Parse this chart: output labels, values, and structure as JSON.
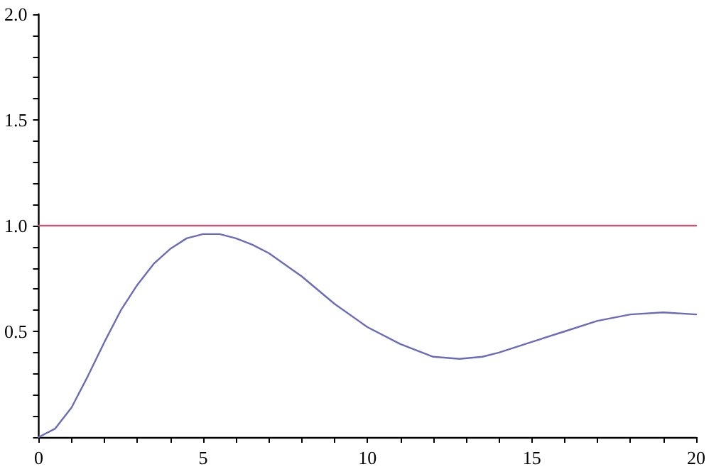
{
  "chart_data": {
    "type": "line",
    "xlim": [
      0,
      20
    ],
    "ylim": [
      0,
      2
    ],
    "xticks": [
      0,
      {
        "value": 1,
        "label": null
      },
      {
        "value": 2,
        "label": null
      },
      {
        "value": 3,
        "label": null
      },
      {
        "value": 4,
        "label": null
      },
      5,
      {
        "value": 6,
        "label": null
      },
      {
        "value": 7,
        "label": null
      },
      {
        "value": 8,
        "label": null
      },
      {
        "value": 9,
        "label": null
      },
      10,
      {
        "value": 11,
        "label": null
      },
      {
        "value": 12,
        "label": null
      },
      {
        "value": 13,
        "label": null
      },
      {
        "value": 14,
        "label": null
      },
      15,
      {
        "value": 16,
        "label": null
      },
      {
        "value": 17,
        "label": null
      },
      {
        "value": 18,
        "label": null
      },
      {
        "value": 19,
        "label": null
      },
      20
    ],
    "yticks": [
      {
        "value": 0,
        "label": null
      },
      {
        "value": 0.1,
        "label": null
      },
      {
        "value": 0.2,
        "label": null
      },
      {
        "value": 0.3,
        "label": null
      },
      {
        "value": 0.4,
        "label": null
      },
      0.5,
      {
        "value": 0.6,
        "label": null
      },
      {
        "value": 0.7,
        "label": null
      },
      {
        "value": 0.8,
        "label": null
      },
      {
        "value": 0.9,
        "label": null
      },
      {
        "value": 1,
        "label": "1.0"
      },
      {
        "value": 1.1,
        "label": null
      },
      {
        "value": 1.2,
        "label": null
      },
      {
        "value": 1.3,
        "label": null
      },
      {
        "value": 1.4,
        "label": null
      },
      1.5,
      {
        "value": 1.6,
        "label": null
      },
      {
        "value": 1.7,
        "label": null
      },
      {
        "value": 1.8,
        "label": null
      },
      {
        "value": 1.9,
        "label": null
      },
      {
        "value": 2,
        "label": "2.0"
      }
    ],
    "grid": false,
    "marker": "none",
    "line_style": "solid",
    "series": [
      {
        "color": "#6b6bb8",
        "x": [
          0,
          0.5,
          1,
          1.5,
          2,
          2.5,
          3,
          3.5,
          4,
          4.5,
          5,
          5.5,
          6,
          6.5,
          7,
          8,
          9,
          10,
          11,
          12,
          12.8,
          13.5,
          14,
          15,
          16,
          17,
          18,
          19,
          20
        ],
        "values": [
          0,
          0.04,
          0.14,
          0.29,
          0.45,
          0.6,
          0.72,
          0.82,
          0.89,
          0.94,
          0.96,
          0.96,
          0.94,
          0.91,
          0.87,
          0.76,
          0.63,
          0.52,
          0.44,
          0.38,
          0.37,
          0.38,
          0.4,
          0.45,
          0.5,
          0.55,
          0.58,
          0.59,
          0.58
        ]
      },
      {
        "color": "#c05a7a",
        "x": [
          0,
          20
        ],
        "values": [
          1,
          1
        ]
      }
    ]
  }
}
